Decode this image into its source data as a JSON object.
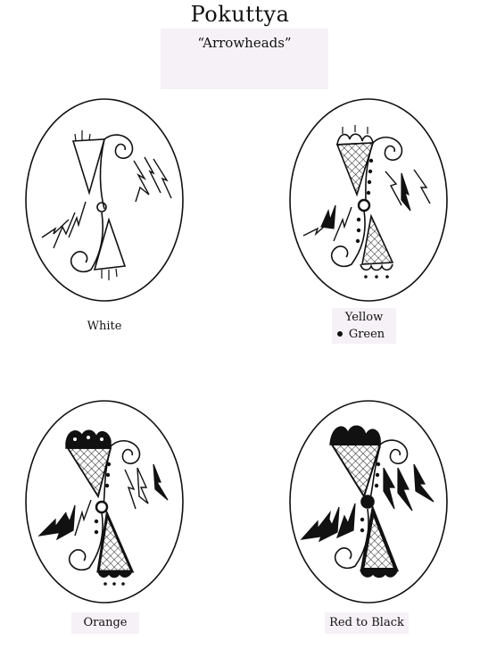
{
  "page": {
    "title": "Pokuttya",
    "subtitle": "“Arrowheads”"
  },
  "eggs": [
    {
      "label": "White"
    },
    {
      "label_line1": "Yellow",
      "label_line2": "Green"
    },
    {
      "label": "Orange"
    },
    {
      "label": "Red to Black"
    }
  ],
  "colors": {
    "outline": "#111111",
    "fill_dark": "#111111",
    "background": "#ffffff",
    "label_bg": "#f6f1f6"
  }
}
